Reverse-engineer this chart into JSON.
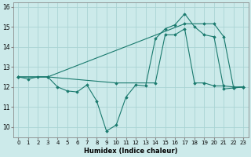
{
  "xlabel": "Humidex (Indice chaleur)",
  "xlim": [
    -0.5,
    23.5
  ],
  "ylim": [
    9.5,
    16.2
  ],
  "xticks": [
    0,
    1,
    2,
    3,
    4,
    5,
    6,
    7,
    8,
    9,
    10,
    11,
    12,
    13,
    14,
    15,
    16,
    17,
    18,
    19,
    20,
    21,
    22,
    23
  ],
  "yticks": [
    10,
    11,
    12,
    13,
    14,
    15,
    16
  ],
  "bg_color": "#cceaea",
  "line_color": "#1a7a6e",
  "grid_color": "#aad4d4",
  "line1_x": [
    0,
    1,
    2,
    3,
    4,
    5,
    6,
    7,
    8,
    9,
    10,
    11,
    12,
    13,
    14,
    15,
    16,
    17,
    18,
    19,
    20,
    21,
    22,
    23
  ],
  "line1_y": [
    12.5,
    12.4,
    12.5,
    12.5,
    12.0,
    11.8,
    11.75,
    12.1,
    11.3,
    9.8,
    10.1,
    11.5,
    12.1,
    12.05,
    14.4,
    14.9,
    15.1,
    15.65,
    15.0,
    14.6,
    14.5,
    11.9,
    11.95,
    12.0
  ],
  "line2_x": [
    0,
    3,
    17,
    19,
    20,
    21,
    22,
    23
  ],
  "line2_y": [
    12.5,
    12.5,
    15.15,
    15.15,
    15.15,
    14.5,
    11.95,
    12.0
  ],
  "line3_x": [
    0,
    3,
    10,
    14,
    15,
    16,
    17,
    18,
    19,
    20,
    21,
    22,
    23
  ],
  "line3_y": [
    12.5,
    12.5,
    12.2,
    12.2,
    14.6,
    14.6,
    14.9,
    12.2,
    12.2,
    12.05,
    12.05,
    12.0,
    12.0
  ]
}
